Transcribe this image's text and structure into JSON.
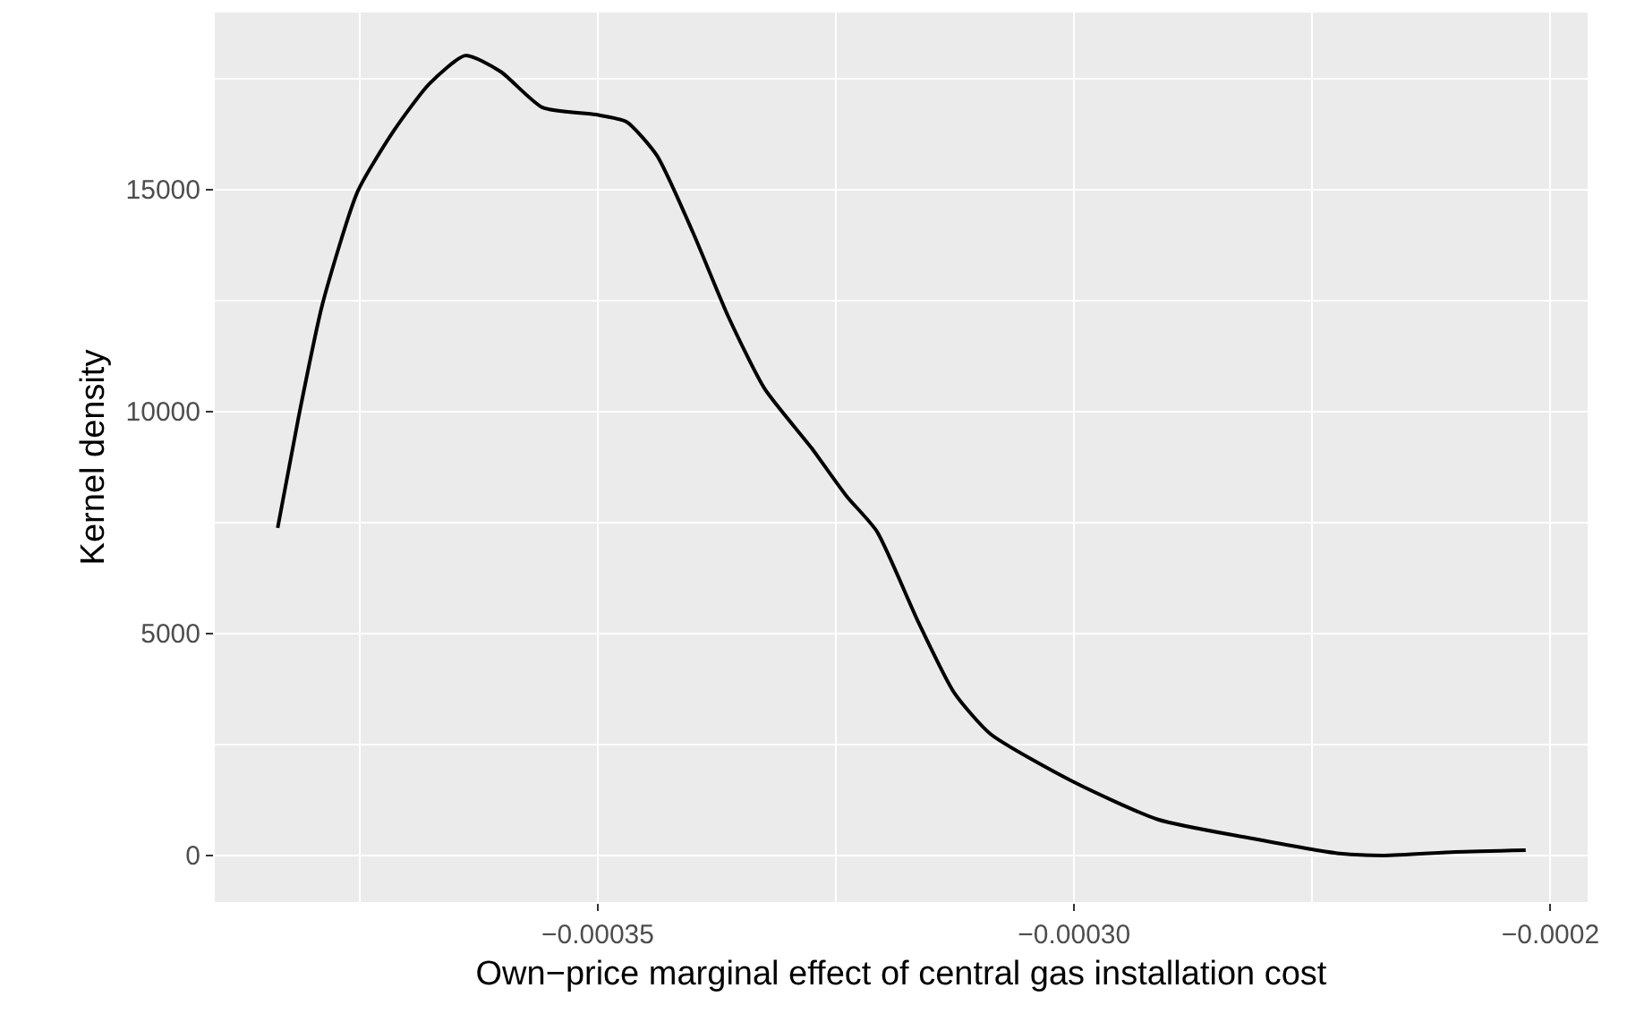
{
  "chart_data": {
    "type": "line",
    "xlabel": "Own−price marginal effect of central gas installation cost",
    "ylabel": "Kernel density",
    "x": [
      -0.0003836,
      -0.0003814,
      -0.0003789,
      -0.0003752,
      -0.0003714,
      -0.0003677,
      -0.0003639,
      -0.0003602,
      -0.0003558,
      -0.0003502,
      -0.000347,
      -0.0003438,
      -0.00034,
      -0.0003363,
      -0.0003325,
      -0.0003276,
      -0.0003239,
      -0.0003207,
      -0.0003164,
      -0.0003126,
      -0.0003088,
      -0.0003,
      -0.0002912,
      -0.0002818,
      -0.0002724,
      -0.0002675,
      -0.00026,
      -0.0002526
    ],
    "series": [
      {
        "color": "#000000",
        "values": [
          7380,
          9880,
          12420,
          14960,
          16330,
          17380,
          18020,
          17660,
          16850,
          16690,
          16530,
          15770,
          14030,
          12140,
          10520,
          9190,
          8100,
          7300,
          5280,
          3670,
          2740,
          1650,
          810,
          400,
          50,
          0,
          80,
          120
        ]
      }
    ],
    "xlim": [
      -0.0003902,
      -0.0002461
    ],
    "ylim": [
      -1050,
      18990
    ],
    "xticks": [
      {
        "value": -0.00035,
        "label": "−0.00035"
      },
      {
        "value": -0.0003,
        "label": "−0.00030"
      },
      {
        "value": -0.00025,
        "label": "−0.0002"
      }
    ],
    "yticks": [
      0,
      5000,
      10000,
      15000
    ],
    "grid": true,
    "line_style": "solid",
    "marker": "none"
  }
}
